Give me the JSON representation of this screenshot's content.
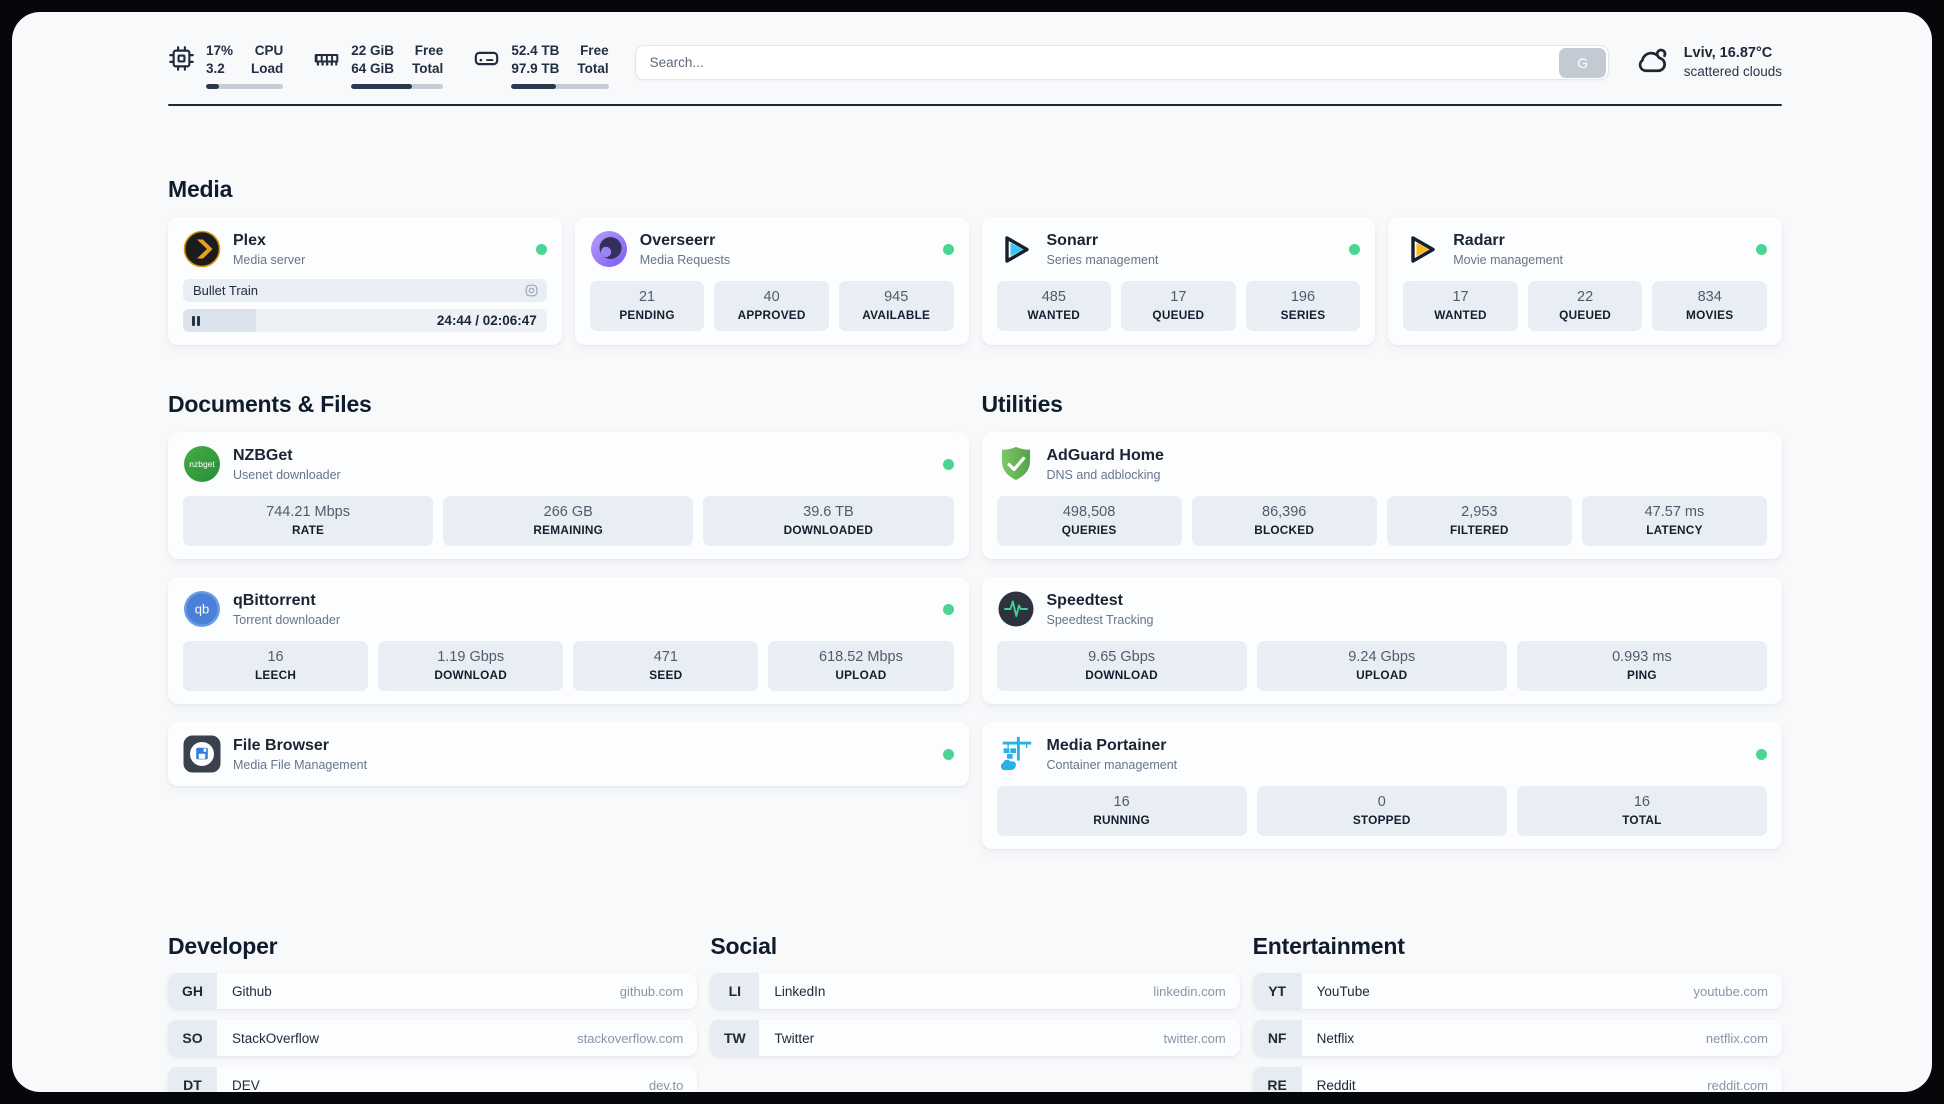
{
  "colors": {
    "status_online": "#4cd592",
    "topbar_accent": "#2b3850",
    "plex_orange": "#e8a021",
    "sonarr_blue": "#38c6f2",
    "radarr_yellow": "#fcb722",
    "nzbget_green": "#309c40",
    "qbittorrent_blue": "#4a80d8",
    "adguard_green": "#68b455",
    "speedtest_pulse": "#3ed28e",
    "portainer_blue": "#29b1e6"
  },
  "topbar": {
    "cpu": {
      "value_top": "17%",
      "value_bottom": "3.2",
      "label_top": "CPU",
      "label_bottom": "Load",
      "progress_percent": 17
    },
    "memory": {
      "value_top": "22 GiB",
      "value_bottom": "64 GiB",
      "label_top": "Free",
      "label_bottom": "Total",
      "progress_percent": 66
    },
    "disk": {
      "value_top": "52.4 TB",
      "value_bottom": "97.9 TB",
      "label_top": "Free",
      "label_bottom": "Total",
      "progress_percent": 46
    },
    "search": {
      "placeholder": "Search...",
      "button_label": "G"
    },
    "weather": {
      "headline": "Lviv, 16.87°C",
      "condition": "scattered clouds"
    }
  },
  "sections": {
    "media": {
      "title": "Media",
      "plex": {
        "name": "Plex",
        "description": "Media server",
        "status": "online",
        "now_playing": {
          "title": "Bullet Train",
          "time": "24:44 / 02:06:47",
          "progress_percent": 20,
          "state": "paused"
        }
      },
      "overseerr": {
        "name": "Overseerr",
        "description": "Media Requests",
        "status": "online",
        "stats": [
          {
            "value": "21",
            "label": "PENDING"
          },
          {
            "value": "40",
            "label": "APPROVED"
          },
          {
            "value": "945",
            "label": "AVAILABLE"
          }
        ]
      },
      "sonarr": {
        "name": "Sonarr",
        "description": "Series management",
        "status": "online",
        "stats": [
          {
            "value": "485",
            "label": "WANTED"
          },
          {
            "value": "17",
            "label": "QUEUED"
          },
          {
            "value": "196",
            "label": "SERIES"
          }
        ]
      },
      "radarr": {
        "name": "Radarr",
        "description": "Movie management",
        "status": "online",
        "stats": [
          {
            "value": "17",
            "label": "WANTED"
          },
          {
            "value": "22",
            "label": "QUEUED"
          },
          {
            "value": "834",
            "label": "MOVIES"
          }
        ]
      }
    },
    "documents": {
      "title": "Documents & Files",
      "nzbget": {
        "name": "NZBGet",
        "description": "Usenet downloader",
        "status": "online",
        "icon_text": "nzbget",
        "stats": [
          {
            "value": "744.21 Mbps",
            "label": "RATE"
          },
          {
            "value": "266 GB",
            "label": "REMAINING"
          },
          {
            "value": "39.6 TB",
            "label": "DOWNLOADED"
          }
        ]
      },
      "qbittorrent": {
        "name": "qBittorrent",
        "description": "Torrent downloader",
        "status": "online",
        "icon_text": "qb",
        "stats": [
          {
            "value": "16",
            "label": "LEECH"
          },
          {
            "value": "1.19 Gbps",
            "label": "DOWNLOAD"
          },
          {
            "value": "471",
            "label": "SEED"
          },
          {
            "value": "618.52 Mbps",
            "label": "UPLOAD"
          }
        ]
      },
      "filebrowser": {
        "name": "File Browser",
        "description": "Media File Management",
        "status": "online"
      }
    },
    "utilities": {
      "title": "Utilities",
      "adguard": {
        "name": "AdGuard Home",
        "description": "DNS and adblocking",
        "stats": [
          {
            "value": "498,508",
            "label": "QUERIES"
          },
          {
            "value": "86,396",
            "label": "BLOCKED"
          },
          {
            "value": "2,953",
            "label": "FILTERED"
          },
          {
            "value": "47.57 ms",
            "label": "LATENCY"
          }
        ]
      },
      "speedtest": {
        "name": "Speedtest",
        "description": "Speedtest Tracking",
        "stats": [
          {
            "value": "9.65 Gbps",
            "label": "DOWNLOAD"
          },
          {
            "value": "9.24 Gbps",
            "label": "UPLOAD"
          },
          {
            "value": "0.993 ms",
            "label": "PING"
          }
        ]
      },
      "portainer": {
        "name": "Media Portainer",
        "description": "Container management",
        "status": "online",
        "stats": [
          {
            "value": "16",
            "label": "RUNNING"
          },
          {
            "value": "0",
            "label": "STOPPED"
          },
          {
            "value": "16",
            "label": "TOTAL"
          }
        ]
      }
    },
    "developer": {
      "title": "Developer",
      "bookmarks": [
        {
          "abbr": "GH",
          "name": "Github",
          "domain": "github.com"
        },
        {
          "abbr": "SO",
          "name": "StackOverflow",
          "domain": "stackoverflow.com"
        },
        {
          "abbr": "DT",
          "name": "DEV",
          "domain": "dev.to"
        }
      ]
    },
    "social": {
      "title": "Social",
      "bookmarks": [
        {
          "abbr": "LI",
          "name": "LinkedIn",
          "domain": "linkedin.com"
        },
        {
          "abbr": "TW",
          "name": "Twitter",
          "domain": "twitter.com"
        }
      ]
    },
    "entertainment": {
      "title": "Entertainment",
      "bookmarks": [
        {
          "abbr": "YT",
          "name": "YouTube",
          "domain": "youtube.com"
        },
        {
          "abbr": "NF",
          "name": "Netflix",
          "domain": "netflix.com"
        },
        {
          "abbr": "RE",
          "name": "Reddit",
          "domain": "reddit.com"
        }
      ]
    }
  }
}
